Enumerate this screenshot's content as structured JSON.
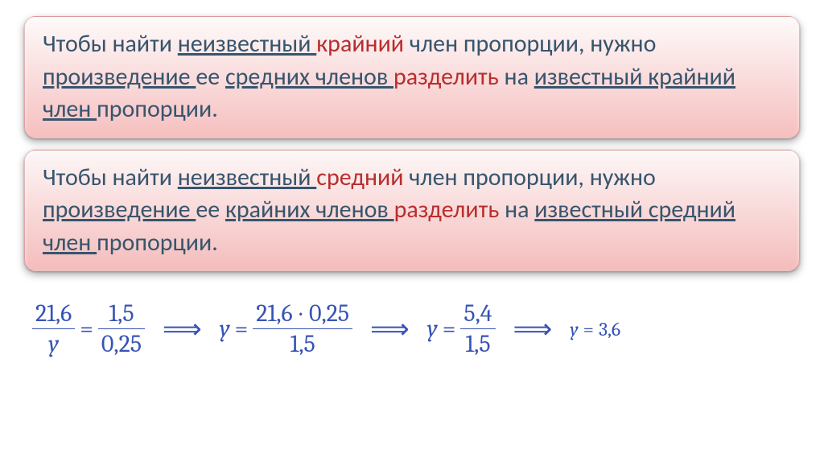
{
  "rules": [
    {
      "bg_gradient": [
        "#fefafa",
        "#f6bfbf"
      ],
      "text_color": "#37556d",
      "accent_color": "#b82e2e",
      "parts": [
        {
          "t": "Чтобы найти "
        },
        {
          "t": "неизвестный",
          "u": true,
          "sp": true
        },
        {
          "t": "крайний",
          "c": "#b82e2e",
          "sp": true
        },
        {
          "t": "член пропорции, нужно "
        },
        {
          "t": "произведение",
          "u": true,
          "sp": true
        },
        {
          "t": "ее "
        },
        {
          "t": "средних членов",
          "u": true,
          "sp": true
        },
        {
          "t": "разделить",
          "c": "#b82e2e",
          "sp": true
        },
        {
          "t": "на "
        },
        {
          "t": "известный крайний член",
          "u": true,
          "sp": true
        },
        {
          "t": "пропорции."
        }
      ]
    },
    {
      "bg_gradient": [
        "#fdf7f7",
        "#f5bcbc"
      ],
      "text_color": "#37556d",
      "accent_color": "#b82e2e",
      "parts": [
        {
          "t": "Чтобы найти "
        },
        {
          "t": "неизвестный",
          "u": true,
          "sp": true
        },
        {
          "t": "средний",
          "c": "#b82e2e",
          "sp": true
        },
        {
          "t": "член пропорции, нужно "
        },
        {
          "t": "произведение",
          "u": true,
          "sp": true
        },
        {
          "t": "ее "
        },
        {
          "t": "крайних членов",
          "u": true,
          "sp": true
        },
        {
          "t": "разделить",
          "c": "#b82e2e",
          "sp": true
        },
        {
          "t": "на "
        },
        {
          "t": "известный средний член",
          "u": true,
          "sp": true
        },
        {
          "t": "пропорции."
        }
      ]
    }
  ],
  "formula": {
    "color": "#3753b5",
    "arrow_glyph": "⟹",
    "arrow_fontsize": 34,
    "base_fontsize": 30,
    "result_fontsize": 24,
    "frac_bar_color": "#3753b5",
    "frac_bar_width": 1.5,
    "steps": {
      "s1": {
        "lnum": "21,6",
        "lden": "y",
        "rnum": "1,5",
        "rden": "0,25"
      },
      "s2": {
        "var": "y",
        "num_a": "21,6",
        "num_b": "0,25",
        "den": "1,5"
      },
      "s3": {
        "var": "y",
        "num": "5,4",
        "den": "1,5"
      },
      "s4": {
        "var": "y",
        "val": "3,6"
      }
    }
  }
}
